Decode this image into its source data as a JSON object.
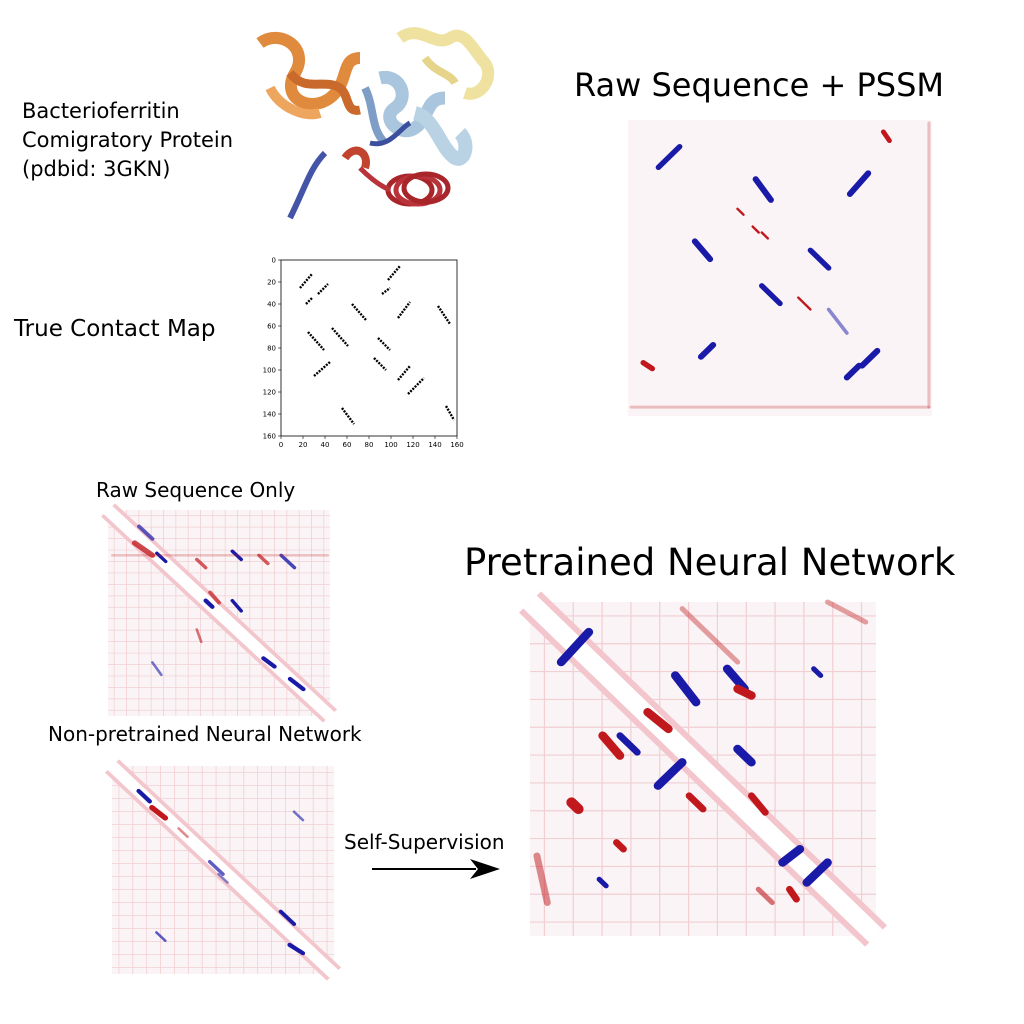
{
  "protein": {
    "name_line1": "Bacterioferritin",
    "name_line2": "Comigratory Protein",
    "pdb_line": "(pdbid: 3GKN)"
  },
  "true_contact_map": {
    "label": "True Contact Map",
    "ticks": [
      "0",
      "20",
      "40",
      "60",
      "80",
      "100",
      "120",
      "140",
      "160"
    ]
  },
  "panels": {
    "pssm": "Raw Sequence + PSSM",
    "raw": "Raw Sequence Only",
    "nonpretrained": "Non-pretrained Neural Network",
    "pretrained": "Pretrained Neural Network"
  },
  "arrow_label": "Self-Supervision",
  "colors": {
    "positive": "#1a1aa8",
    "negative": "#c0181c",
    "contact": "#000000",
    "helix_red": "#a8252a",
    "strand_orange": "#e49a4e",
    "helix_blue": "#a9c6dc",
    "helix_yellow": "#f0e2a2"
  },
  "icons": {
    "protein": "protein-ribbon-icon",
    "arrow": "right-arrow-icon"
  }
}
